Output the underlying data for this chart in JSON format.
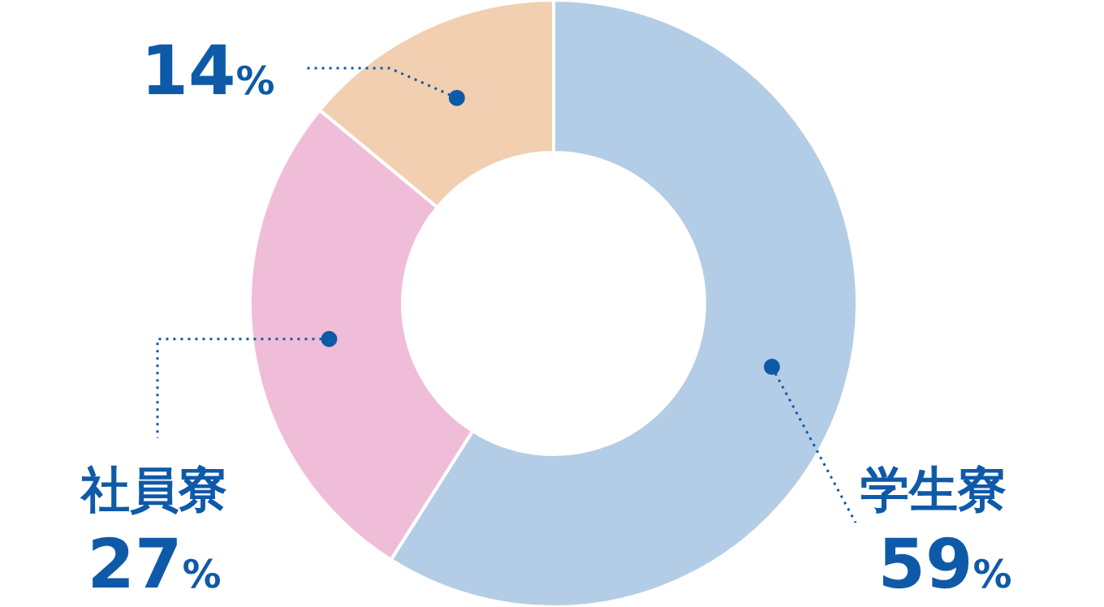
{
  "chart_data": {
    "type": "donut",
    "categories": [
      "学生寮",
      "社員寮",
      null
    ],
    "values": [
      59,
      27,
      14
    ],
    "value_labels": [
      "59%",
      "27%",
      "14%"
    ],
    "colors": [
      "#b4cde6",
      "#f0bdd8",
      "#f1cfb0"
    ]
  }
}
